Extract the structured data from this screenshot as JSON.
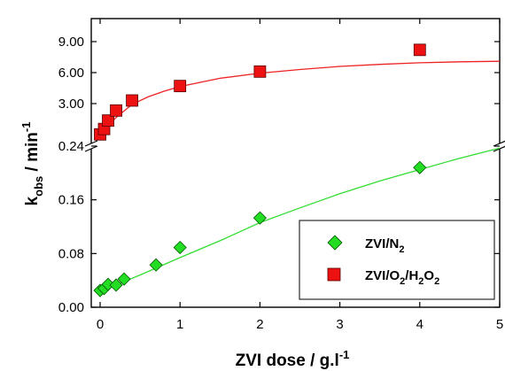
{
  "chart_data": {
    "type": "scatter",
    "xlabel": "ZVI dose / g.l",
    "xlabel_sup": "-1",
    "ylabel": "k",
    "ylabel_sub": "obs",
    "ylabel_rest": " / min",
    "ylabel_sup": "-1",
    "x_ticks": [
      "0",
      "1",
      "2",
      "3",
      "4",
      "5"
    ],
    "xlim": [
      -0.1,
      5
    ],
    "axis_break": true,
    "lower_panel": {
      "ylim": [
        0,
        0.24
      ],
      "y_ticks": [
        "0.00",
        "0.08",
        "0.16",
        "0.24"
      ]
    },
    "upper_panel": {
      "ylim": [
        0.24,
        9
      ],
      "y_ticks": [
        "3.00",
        "6.00",
        "9.00"
      ]
    },
    "legend_position": "bottom-right",
    "series": [
      {
        "name_main": "ZVI/N",
        "name_sub1": "2",
        "marker": "diamond",
        "color": "#22dd22",
        "fit_color": "#33dd33",
        "panel": "lower",
        "x": [
          0,
          0.05,
          0.1,
          0.2,
          0.3,
          0.7,
          1,
          2,
          4
        ],
        "y": [
          0.025,
          0.028,
          0.034,
          0.033,
          0.042,
          0.063,
          0.089,
          0.133,
          0.208
        ],
        "fit_x": [
          0,
          0.25,
          0.5,
          1,
          1.5,
          2,
          2.5,
          3,
          3.5,
          4,
          4.5,
          5
        ],
        "fit_y": [
          0.024,
          0.036,
          0.048,
          0.074,
          0.099,
          0.126,
          0.148,
          0.169,
          0.188,
          0.205,
          0.222,
          0.237
        ]
      },
      {
        "name_main": "ZVI/O",
        "name_sub1": "2",
        "name_mid": "/H",
        "name_sub2": "2",
        "name_end": "O",
        "name_sub3": "2",
        "marker": "square",
        "color": "#ee1111",
        "fit_color": "#ee2222",
        "panel": "upper",
        "x": [
          0,
          0.05,
          0.1,
          0.2,
          0.4,
          1,
          2,
          4
        ],
        "y": [
          1.0,
          1.35,
          1.9,
          2.55,
          3.3,
          4.7,
          6.1,
          8.2
        ],
        "fit_x": [
          0,
          0.1,
          0.2,
          0.4,
          0.6,
          0.8,
          1,
          1.5,
          2,
          2.5,
          3,
          3.5,
          4,
          4.5,
          5
        ],
        "fit_y": [
          0.95,
          1.55,
          2.1,
          2.95,
          3.65,
          4.2,
          4.65,
          5.45,
          5.95,
          6.3,
          6.6,
          6.8,
          6.95,
          7.05,
          7.1
        ]
      }
    ]
  }
}
